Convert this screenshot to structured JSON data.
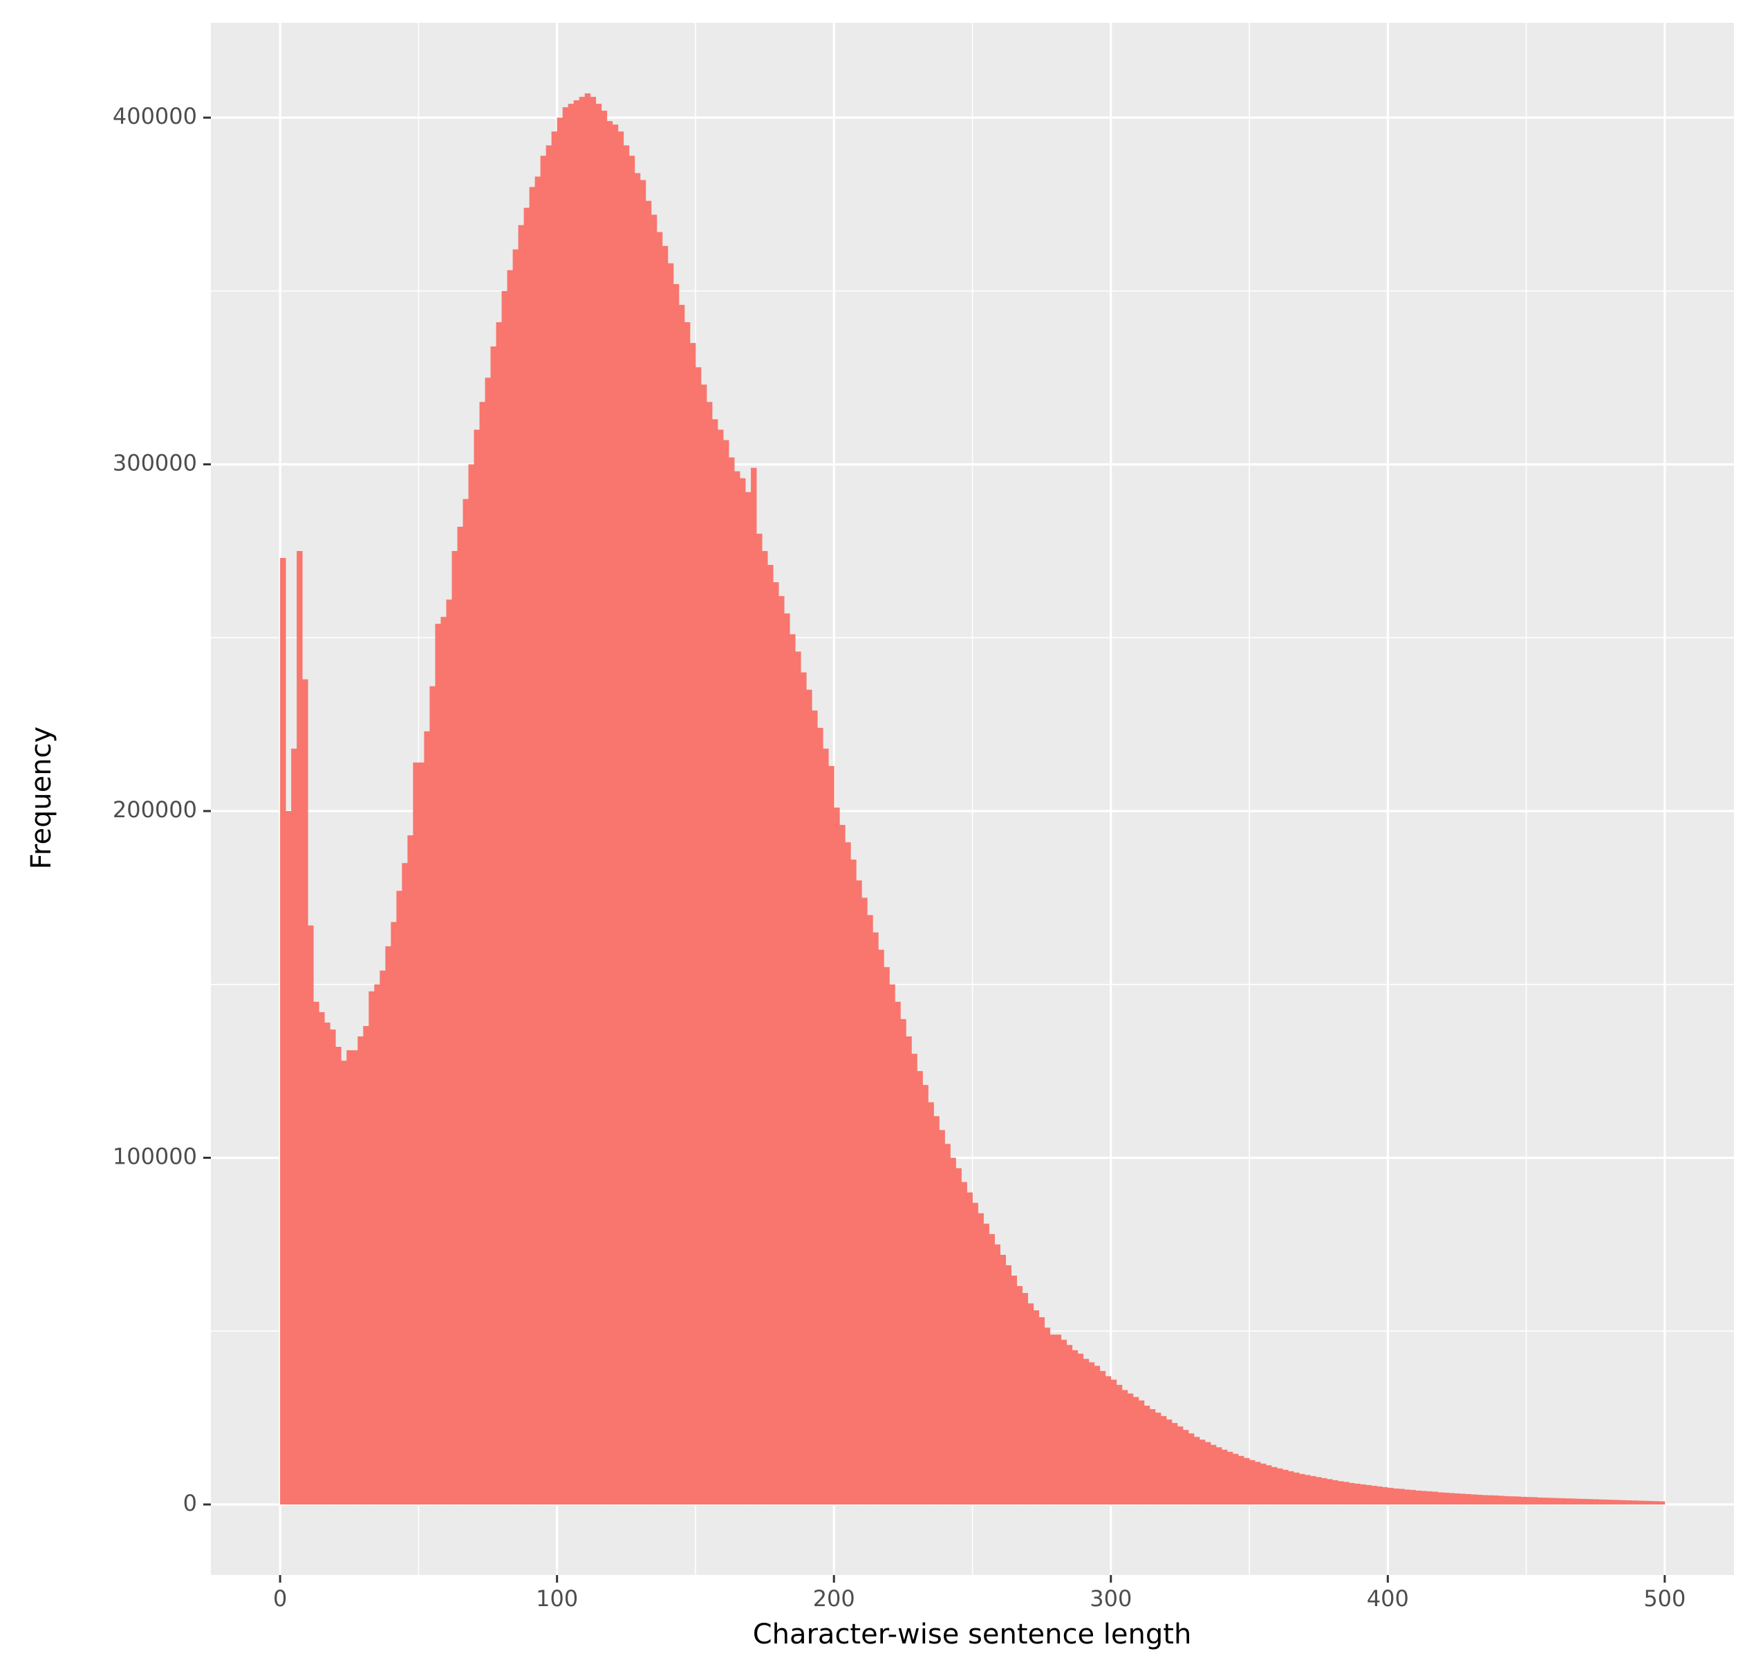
{
  "chart_data": {
    "type": "histogram",
    "x_label": "Character-wise sentence length",
    "y_label": "Frequency",
    "color": "#f8766d",
    "panel_background": "#ebebeb",
    "grid": true,
    "xlim": [
      -25,
      525
    ],
    "ylim": [
      -20350,
      427350
    ],
    "xticks": [
      0,
      100,
      200,
      300,
      400,
      500
    ],
    "yticks": [
      0,
      100000,
      200000,
      300000,
      400000
    ],
    "x_minor_grid": [
      50,
      150,
      250,
      350,
      450
    ],
    "y_minor_grid": [
      50000,
      150000,
      250000,
      350000
    ],
    "bins": [
      0,
      2,
      4,
      6,
      8,
      10,
      12,
      14,
      16,
      18,
      20,
      22,
      24,
      26,
      28,
      30,
      32,
      34,
      36,
      38,
      40,
      42,
      44,
      46,
      48,
      50,
      52,
      54,
      56,
      58,
      60,
      62,
      64,
      66,
      68,
      70,
      72,
      74,
      76,
      78,
      80,
      82,
      84,
      86,
      88,
      90,
      92,
      94,
      96,
      98,
      100,
      102,
      104,
      106,
      108,
      110,
      112,
      114,
      116,
      118,
      120,
      122,
      124,
      126,
      128,
      130,
      132,
      134,
      136,
      138,
      140,
      142,
      144,
      146,
      148,
      150,
      152,
      154,
      156,
      158,
      160,
      162,
      164,
      166,
      168,
      170,
      172,
      174,
      176,
      178,
      180,
      182,
      184,
      186,
      188,
      190,
      192,
      194,
      196,
      198,
      200,
      202,
      204,
      206,
      208,
      210,
      212,
      214,
      216,
      218,
      220,
      222,
      224,
      226,
      228,
      230,
      232,
      234,
      236,
      238,
      240,
      242,
      244,
      246,
      248,
      250,
      252,
      254,
      256,
      258,
      260,
      262,
      264,
      266,
      268,
      270,
      272,
      274,
      276,
      278,
      280,
      282,
      284,
      286,
      288,
      290,
      292,
      294,
      296,
      298,
      300,
      302,
      304,
      306,
      308,
      310,
      312,
      314,
      316,
      318,
      320,
      322,
      324,
      326,
      328,
      330,
      332,
      334,
      336,
      338,
      340,
      342,
      344,
      346,
      348,
      350,
      352,
      354,
      356,
      358,
      360,
      362,
      364,
      366,
      368,
      370,
      372,
      374,
      376,
      378,
      380,
      382,
      384,
      386,
      388,
      390,
      392,
      394,
      396,
      398,
      400,
      402,
      404,
      406,
      408,
      410,
      412,
      414,
      416,
      418,
      420,
      422,
      424,
      426,
      428,
      430,
      432,
      434,
      436,
      438,
      440,
      442,
      444,
      446,
      448,
      450,
      452,
      454,
      456,
      458,
      460,
      462,
      464,
      466,
      468,
      470,
      472,
      474,
      476,
      478,
      480,
      482,
      484,
      486,
      488,
      490,
      492,
      494,
      496,
      498,
      500
    ],
    "counts": [
      273000,
      200000,
      218000,
      275000,
      238000,
      167000,
      145000,
      142000,
      139000,
      137000,
      132000,
      128000,
      131000,
      131000,
      135000,
      138000,
      148000,
      150000,
      154000,
      161000,
      168000,
      177000,
      185000,
      193000,
      214000,
      214000,
      223000,
      236000,
      254000,
      256000,
      261000,
      275000,
      282000,
      290000,
      300000,
      310000,
      318000,
      325000,
      334000,
      341000,
      350000,
      356000,
      362000,
      369000,
      374000,
      380000,
      383000,
      389000,
      392000,
      396000,
      400000,
      403000,
      404000,
      405000,
      406000,
      407000,
      406000,
      404000,
      402000,
      399000,
      398000,
      396000,
      392000,
      389000,
      384000,
      382000,
      376000,
      372000,
      367000,
      363000,
      358000,
      352000,
      346000,
      341000,
      335000,
      328000,
      323000,
      318000,
      313000,
      310000,
      307000,
      302000,
      298000,
      296000,
      292000,
      299000,
      280000,
      275000,
      271000,
      266000,
      262000,
      257000,
      251000,
      246000,
      240000,
      235000,
      229000,
      224000,
      218000,
      213000,
      201000,
      196000,
      191000,
      186000,
      180000,
      175000,
      170000,
      165000,
      160000,
      155000,
      150000,
      145000,
      140000,
      135000,
      130000,
      125000,
      121000,
      116000,
      112000,
      108000,
      104000,
      100000,
      97000,
      93000,
      90000,
      87000,
      84000,
      81000,
      78000,
      75000,
      72000,
      69000,
      66000,
      63000,
      61000,
      58000,
      56000,
      54000,
      51000,
      49000,
      49000,
      47500,
      46000,
      44500,
      43500,
      42000,
      41000,
      40000,
      38500,
      37000,
      36000,
      34500,
      33000,
      32000,
      31000,
      30000,
      28500,
      27500,
      26500,
      25500,
      24500,
      23500,
      22500,
      21500,
      20500,
      19500,
      18700,
      18000,
      17200,
      16500,
      15800,
      15200,
      14600,
      14000,
      13400,
      12800,
      12300,
      11800,
      11300,
      10800,
      10400,
      10000,
      9600,
      9200,
      8800,
      8500,
      8200,
      7900,
      7600,
      7300,
      7000,
      6700,
      6500,
      6200,
      6000,
      5800,
      5600,
      5400,
      5200,
      5000,
      4800,
      4600,
      4500,
      4300,
      4200,
      4000,
      3900,
      3800,
      3700,
      3500,
      3400,
      3300,
      3200,
      3100,
      3000,
      2900,
      2800,
      2700,
      2650,
      2600,
      2500,
      2400,
      2350,
      2300,
      2200,
      2150,
      2100,
      2000,
      1950,
      1900,
      1850,
      1800,
      1750,
      1700,
      1650,
      1600,
      1550,
      1500,
      1450,
      1400,
      1350,
      1300,
      1250,
      1200,
      1150,
      1100,
      1050,
      1000,
      950,
      900
    ]
  }
}
